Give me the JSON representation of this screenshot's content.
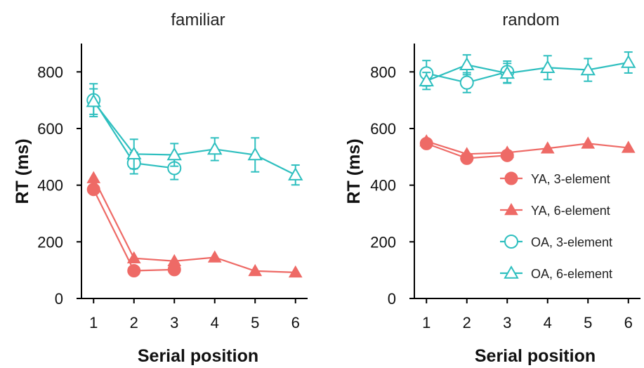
{
  "colors": {
    "YA": "#ee6a66",
    "OA": "#2ebfbf",
    "axis": "#000000"
  },
  "chart_data": [
    {
      "type": "line",
      "title": "familiar",
      "xlabel": "Serial position",
      "ylabel": "RT (ms)",
      "xlim": [
        0.7,
        6.3
      ],
      "ylim": [
        0,
        900
      ],
      "x_ticks": [
        "1",
        "2",
        "3",
        "4",
        "5",
        "6"
      ],
      "y_ticks": [
        "0",
        "200",
        "400",
        "600",
        "800"
      ],
      "series": [
        {
          "name": "YA, 3-element",
          "group": "YA",
          "marker": "circle-filled",
          "x": [
            1,
            2,
            3
          ],
          "y": [
            385,
            98,
            102
          ],
          "err": [
            0,
            0,
            0
          ]
        },
        {
          "name": "YA, 6-element",
          "group": "YA6",
          "marker": "triangle-filled",
          "x": [
            1,
            2,
            3,
            4,
            5,
            6
          ],
          "y": [
            425,
            142,
            132,
            145,
            97,
            92
          ],
          "err": [
            0,
            0,
            0,
            0,
            0,
            0
          ]
        },
        {
          "name": "OA, 3-element",
          "group": "OA3",
          "marker": "circle-open",
          "x": [
            1,
            2,
            3
          ],
          "y": [
            700,
            478,
            460
          ],
          "err": [
            58,
            38,
            40
          ]
        },
        {
          "name": "OA, 6-element",
          "group": "OA",
          "marker": "triangle-open",
          "x": [
            1,
            2,
            3,
            4,
            5,
            6
          ],
          "y": [
            695,
            510,
            507,
            527,
            507,
            436
          ],
          "err": [
            45,
            52,
            40,
            40,
            60,
            35
          ]
        }
      ]
    },
    {
      "type": "line",
      "title": "random",
      "xlabel": "Serial position",
      "ylabel": "RT (ms)",
      "xlim": [
        0.7,
        6.3
      ],
      "ylim": [
        0,
        900
      ],
      "x_ticks": [
        "1",
        "2",
        "3",
        "4",
        "5",
        "6"
      ],
      "y_ticks": [
        "0",
        "200",
        "400",
        "600",
        "800"
      ],
      "series": [
        {
          "name": "YA, 3-element",
          "group": "YA",
          "marker": "circle-filled",
          "x": [
            1,
            2,
            3
          ],
          "y": [
            547,
            495,
            505
          ],
          "err": [
            0,
            0,
            0
          ]
        },
        {
          "name": "YA, 6-element",
          "group": "YA6",
          "marker": "triangle-filled",
          "x": [
            1,
            2,
            3,
            4,
            5,
            6
          ],
          "y": [
            555,
            510,
            515,
            530,
            547,
            532
          ],
          "err": [
            0,
            0,
            0,
            0,
            0,
            0
          ]
        },
        {
          "name": "OA, 3-element",
          "group": "OA3",
          "marker": "circle-open",
          "x": [
            1,
            2,
            3
          ],
          "y": [
            795,
            762,
            800
          ],
          "err": [
            45,
            35,
            38
          ]
        },
        {
          "name": "OA, 6-element",
          "group": "OA",
          "marker": "triangle-open",
          "x": [
            1,
            2,
            3,
            4,
            5,
            6
          ],
          "y": [
            768,
            825,
            795,
            815,
            807,
            833
          ],
          "err": [
            30,
            35,
            35,
            42,
            40,
            37
          ]
        }
      ],
      "legend": {
        "position": "lower-right",
        "entries": [
          "YA, 3-element",
          "YA, 6-element",
          "OA, 3-element",
          "OA, 6-element"
        ]
      }
    }
  ]
}
